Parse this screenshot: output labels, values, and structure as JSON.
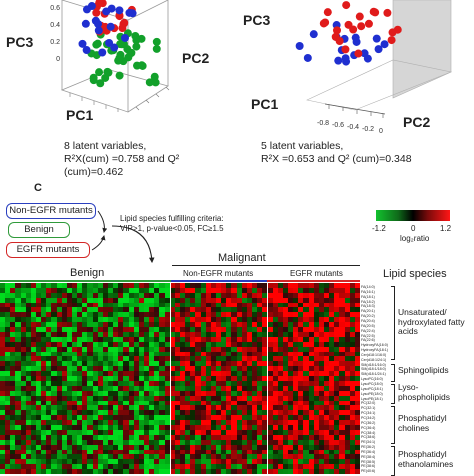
{
  "panel_a": {
    "axis_labels": {
      "pc1": "PC1",
      "pc2": "PC2",
      "pc3": "PC3"
    },
    "ticks_pc3": [
      "0.6",
      "0.4",
      "0.2",
      "0"
    ],
    "caption": {
      "line1": "8 latent variables,",
      "line2": "R²X(cum) =0.758 and Q² (cum)=0.462"
    }
  },
  "panel_b": {
    "axis_labels": {
      "pc1": "PC1",
      "pc2": "PC2",
      "pc3": "PC3"
    },
    "ticks_pc2": [
      "-0.8",
      "-0.6",
      "-0.4",
      "-0.2",
      "0"
    ],
    "caption": {
      "line1": "5 latent variables,",
      "line2": "R²X =0.653 and Q² (cum)=0.348"
    }
  },
  "panel_c": {
    "letter": "C",
    "groups": [
      {
        "label": "Non-EGFR mutants",
        "color": "#2a3fbf"
      },
      {
        "label": "Benign",
        "color": "#2f9a3a"
      },
      {
        "label": "EGFR mutants",
        "color": "#d32626"
      }
    ],
    "criteria": {
      "line1": "Lipid species fulfilling criteria:",
      "line2": "VIP>1, p-value<0.05, FC≥1.5"
    },
    "colorbar": {
      "min": "-1.2",
      "mid": "0",
      "max": "1.2",
      "label": "log₂ratio"
    },
    "headers": {
      "malignant": "Malignant",
      "benign": "Benign",
      "non_egfr": "Non-EGFR mutants",
      "egfr": "EGFR mutants",
      "lipid_species": "Lipid species"
    },
    "lipid_classes": [
      {
        "name": "Unsaturated/ hydroxylated fatty acids"
      },
      {
        "name": "Sphingolipids"
      },
      {
        "name": "Lyso- phospholipids"
      },
      {
        "name": "Phosphatidyl cholines"
      },
      {
        "name": "Phosphatidyl ethanolamines"
      }
    ],
    "row_labels": [
      "FA(14:0)",
      "FA(16:1)",
      "FA(18:1)",
      "FA(18:2)",
      "FA(18:3)",
      "FA(20:1)",
      "FA(20:2)",
      "FA(20:4)",
      "FA(20:5)",
      "FA(22:4)",
      "FA(22:5)",
      "FA(22:6)",
      "HydroxyFA(16:0)",
      "HydroxyFA(18:1)",
      "Cer(d18:1/16:0)",
      "Cer(d18:1/24:1)",
      "SM(d18:1/16:0)",
      "SM(d18:1/18:0)",
      "SM(d18:1/24:1)",
      "LysoPC(16:0)",
      "LysoPC(18:0)",
      "LysoPC(18:1)",
      "LysoPE(18:0)",
      "LysoPE(18:1)",
      "PC(32:0)",
      "PC(32:1)",
      "PC(34:1)",
      "PC(34:2)",
      "PC(36:2)",
      "PC(36:4)",
      "PC(38:4)",
      "PC(38:6)",
      "PE(34:1)",
      "PE(36:2)",
      "PE(36:4)",
      "PE(38:4)",
      "PE(38:5)",
      "PE(38:6)",
      "PE(40:6)"
    ]
  },
  "colors": {
    "red": "#e01b1b",
    "green": "#12a02a",
    "blue": "#1f2fd0",
    "benign_bar": "#2f9a3a",
    "nonegfr_bar": "#2a3fbf",
    "egfr_bar": "#d32626"
  }
}
